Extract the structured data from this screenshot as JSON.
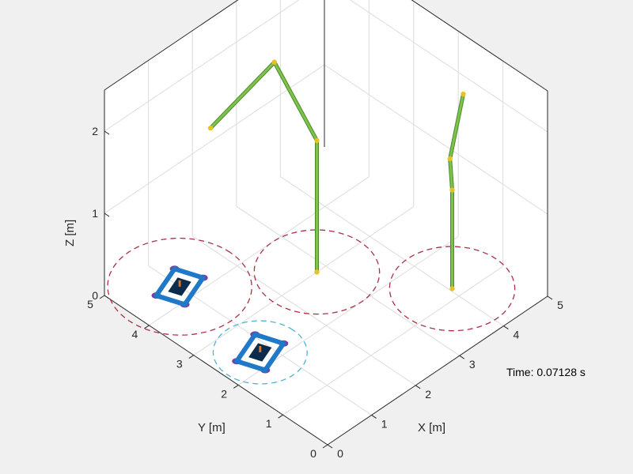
{
  "chart_data": {
    "type": "scatter",
    "view": "3d-isometric",
    "xlabel": "X [m]",
    "ylabel": "Y [m]",
    "zlabel": "Z [m]",
    "xlim": [
      0,
      5
    ],
    "ylim": [
      0,
      5
    ],
    "zlim": [
      0,
      2.5
    ],
    "x_ticks": [
      "0",
      "1",
      "2",
      "3",
      "4",
      "5"
    ],
    "y_ticks": [
      "0",
      "1",
      "2",
      "3",
      "4",
      "5"
    ],
    "z_ticks": [
      "0",
      "1",
      "2"
    ],
    "grid": true,
    "annotation": "Time: 0.07128 s",
    "colors": {
      "background": "#f0f0f0",
      "axes": "#ffffff",
      "grid": "#dcdcdc",
      "robot_link": "#7dc24a",
      "robot_joint": "#e6c229",
      "rover_body": "#1f78c8",
      "rover_wheel": "#7b3fa0",
      "circle_red": "#a83244",
      "circle_cyan": "#4fb3d0"
    },
    "dashed_circles": [
      {
        "cx": 1.0,
        "cy": 4.3,
        "r": 1.15,
        "color": "circle_red"
      },
      {
        "cx": 2.8,
        "cy": 3.0,
        "r": 1.0,
        "color": "circle_red"
      },
      {
        "cx": 4.05,
        "cy": 1.2,
        "r": 1.0,
        "color": "circle_red"
      },
      {
        "cx": 0.8,
        "cy": 2.3,
        "r": 0.75,
        "color": "circle_cyan"
      }
    ],
    "rovers": [
      {
        "x": 1.0,
        "y": 4.3,
        "heading_deg": 20
      },
      {
        "x": 0.8,
        "y": 2.3,
        "heading_deg": 20
      }
    ],
    "manipulators": [
      {
        "points": [
          [
            2.8,
            3.0,
            0
          ],
          [
            2.8,
            3.0,
            1.6
          ],
          [
            2.95,
            4.1,
            2.1
          ],
          [
            1.6,
            4.2,
            1.75
          ]
        ]
      },
      {
        "points": [
          [
            4.05,
            1.2,
            0
          ],
          [
            4.05,
            1.2,
            1.2
          ],
          [
            4.0,
            1.2,
            1.6
          ],
          [
            4.2,
            1.1,
            2.35
          ]
        ]
      }
    ]
  }
}
